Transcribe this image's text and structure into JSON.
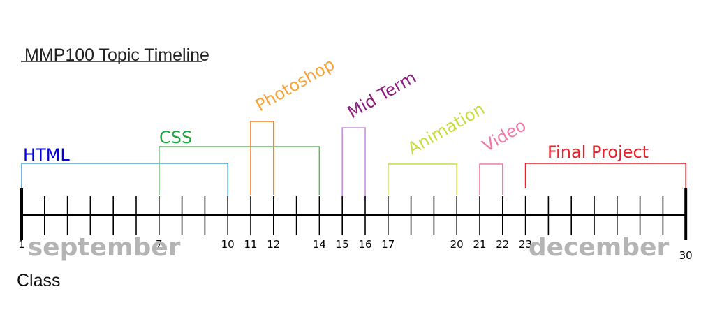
{
  "title": "MMP100 Topic Timeline",
  "axis_label": "Class",
  "months": [
    {
      "name": "september",
      "class": 4.6
    },
    {
      "name": "december",
      "class": 26.2
    }
  ],
  "classes": {
    "min": 1,
    "max": 30
  },
  "tick_labels": [
    1,
    7,
    10,
    11,
    12,
    14,
    15,
    16,
    17,
    20,
    21,
    22,
    23,
    30
  ],
  "topics": [
    {
      "name": "HTML",
      "start": 1,
      "end": 10,
      "color": "#0000e0",
      "line_color": "#4aa8e0",
      "angle": 0
    },
    {
      "name": "CSS",
      "start": 7,
      "end": 14,
      "color": "#22a540",
      "line_color": "#5cb85c",
      "angle": 0
    },
    {
      "name": "Photoshop",
      "start": 11,
      "end": 12,
      "color": "#f5a53a",
      "line_color": "#f0882a",
      "angle": -30
    },
    {
      "name": "Mid Term",
      "start": 15,
      "end": 16,
      "color": "#8b1e7e",
      "line_color": "#c890e0",
      "angle": -30
    },
    {
      "name": "Animation",
      "start": 17,
      "end": 20,
      "color": "#c8dc40",
      "line_color": "#c8dc40",
      "angle": -30
    },
    {
      "name": "Video",
      "start": 21,
      "end": 22,
      "color": "#f07aa8",
      "line_color": "#f07aa8",
      "angle": -30
    },
    {
      "name": "Final Project",
      "start": 23,
      "end": 30,
      "color": "#e8202a",
      "line_color": "#e8202a",
      "angle": 0
    }
  ]
}
